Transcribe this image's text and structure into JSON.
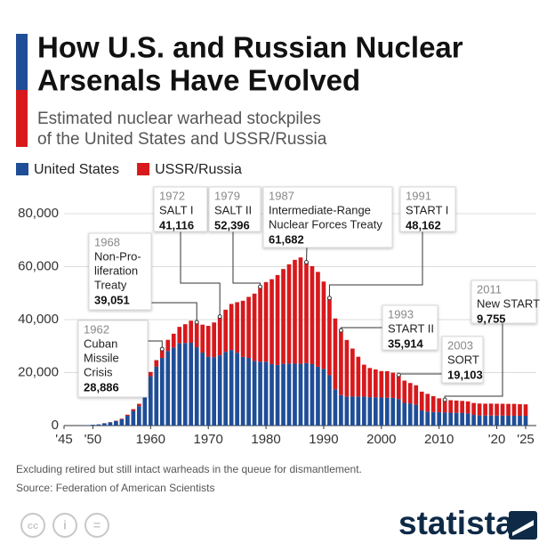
{
  "chart_data": {
    "type": "stacked_bar",
    "title_lines": [
      "How U.S. and Russian Nuclear",
      "Arsenals Have Evolved"
    ],
    "subtitle_lines": [
      "Estimated nuclear warhead stockpiles",
      "of the United States and USSR/Russia"
    ],
    "x": [
      1945,
      1946,
      1947,
      1948,
      1949,
      1950,
      1951,
      1952,
      1953,
      1954,
      1955,
      1956,
      1957,
      1958,
      1959,
      1960,
      1961,
      1962,
      1963,
      1964,
      1965,
      1966,
      1967,
      1968,
      1969,
      1970,
      1971,
      1972,
      1973,
      1974,
      1975,
      1976,
      1977,
      1978,
      1979,
      1980,
      1981,
      1982,
      1983,
      1984,
      1985,
      1986,
      1987,
      1988,
      1989,
      1990,
      1991,
      1992,
      1993,
      1994,
      1995,
      1996,
      1997,
      1998,
      1999,
      2000,
      2001,
      2002,
      2003,
      2004,
      2005,
      2006,
      2007,
      2008,
      2009,
      2010,
      2011,
      2012,
      2013,
      2014,
      2015,
      2016,
      2017,
      2018,
      2019,
      2020,
      2021,
      2022,
      2023,
      2024,
      2025
    ],
    "series": [
      {
        "name": "United States",
        "color": "#1f4e97",
        "values": [
          2,
          9,
          13,
          50,
          170,
          299,
          438,
          841,
          1169,
          1703,
          2422,
          3692,
          5543,
          7345,
          12298,
          18638,
          22229,
          25540,
          28133,
          29463,
          31139,
          31175,
          31255,
          29561,
          27552,
          26008,
          25830,
          26516,
          27835,
          28537,
          27519,
          25914,
          25542,
          24418,
          24138,
          24104,
          23208,
          22886,
          23305,
          23459,
          23368,
          23317,
          23575,
          23205,
          22217,
          21392,
          19008,
          13708,
          11511,
          10979,
          10904,
          11011,
          10903,
          10732,
          10685,
          10577,
          10526,
          10457,
          10027,
          8570,
          8360,
          7853,
          5709,
          5273,
          5113,
          5066,
          4897,
          4881,
          4804,
          4717,
          4571,
          4018,
          3822,
          3785,
          3805,
          3750,
          3750,
          3708,
          3708,
          3708,
          3700
        ]
      },
      {
        "name": "USSR/Russia",
        "color": "#d7191c",
        "values": [
          0,
          0,
          0,
          0,
          1,
          5,
          25,
          50,
          120,
          150,
          200,
          426,
          660,
          869,
          1060,
          1605,
          2471,
          3346,
          4238,
          5221,
          6129,
          7089,
          8339,
          9490,
          10538,
          11643,
          13092,
          14600,
          15915,
          17385,
          19055,
          21205,
          23044,
          25393,
          28258,
          30062,
          32049,
          33952,
          35804,
          37431,
          39197,
          40159,
          38107,
          37000,
          35805,
          32980,
          29154,
          26734,
          24403,
          21339,
          18179,
          14978,
          12085,
          11000,
          10500,
          10000,
          10000,
          9500,
          9076,
          8400,
          7700,
          7360,
          7100,
          6700,
          6000,
          5215,
          4858,
          4700,
          4650,
          4600,
          4550,
          4500,
          4490,
          4477,
          4490,
          4495,
          4477,
          4477,
          4489,
          4380,
          4309
        ]
      }
    ],
    "xlim": [
      1945,
      2025
    ],
    "xticks": [
      {
        "value": 1945,
        "label": "'45"
      },
      {
        "value": 1950,
        "label": "'50"
      },
      1960,
      1970,
      1980,
      1990,
      2000,
      2010,
      {
        "value": 2020,
        "label": "'20"
      },
      {
        "value": 2025,
        "label": "'25"
      }
    ],
    "ylim": [
      0,
      80000
    ],
    "yticks": [
      0,
      {
        "value": 20000,
        "label": "20,000"
      },
      {
        "value": 40000,
        "label": "40,000"
      },
      {
        "value": 60000,
        "label": "60,000"
      },
      {
        "value": 80000,
        "label": "80,000"
      }
    ],
    "grid": true,
    "annotations": [
      {
        "x": 1962,
        "text_lines": [
          "Cuban",
          "Missile",
          "Crisis"
        ],
        "value": 28886,
        "value_label": "28,886"
      },
      {
        "x": 1968,
        "text_lines": [
          "Non-Pro-",
          "liferation",
          "Treaty"
        ],
        "value": 39051,
        "value_label": "39,051"
      },
      {
        "x": 1972,
        "text_lines": [
          "SALT I"
        ],
        "value": 41116,
        "value_label": "41,116"
      },
      {
        "x": 1979,
        "text_lines": [
          "SALT II"
        ],
        "value": 52396,
        "value_label": "52,396"
      },
      {
        "x": 1987,
        "text_lines": [
          "Intermediate-Range",
          "Nuclear Forces Treaty"
        ],
        "value": 61682,
        "value_label": "61,682"
      },
      {
        "x": 1991,
        "text_lines": [
          "START I"
        ],
        "value": 48162,
        "value_label": "48,162"
      },
      {
        "x": 1993,
        "text_lines": [
          "START II"
        ],
        "value": 35914,
        "value_label": "35,914"
      },
      {
        "x": 2003,
        "text_lines": [
          "SORT"
        ],
        "value": 19103,
        "value_label": "19,103"
      },
      {
        "x": 2011,
        "text_lines": [
          "New START"
        ],
        "value": 9755,
        "value_label": "9,755"
      }
    ],
    "note": "Excluding retired but still intact warheads in the queue for dismantlement.",
    "source": "Source: Federation of American Scientists",
    "brand": "statista"
  }
}
